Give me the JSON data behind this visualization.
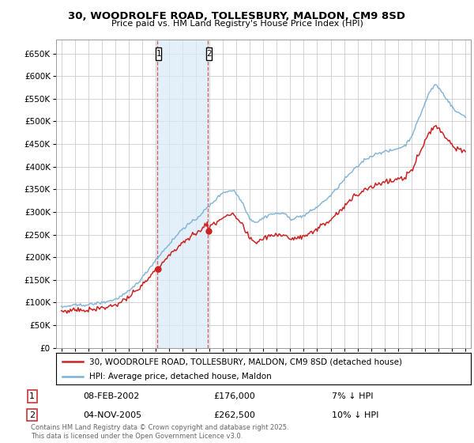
{
  "title": "30, WOODROLFE ROAD, TOLLESBURY, MALDON, CM9 8SD",
  "subtitle": "Price paid vs. HM Land Registry's House Price Index (HPI)",
  "legend_line1": "30, WOODROLFE ROAD, TOLLESBURY, MALDON, CM9 8SD (detached house)",
  "legend_line2": "HPI: Average price, detached house, Maldon",
  "footnote": "Contains HM Land Registry data © Crown copyright and database right 2025.\nThis data is licensed under the Open Government Licence v3.0.",
  "transaction1_date": "08-FEB-2002",
  "transaction1_price": "£176,000",
  "transaction1_hpi": "7% ↓ HPI",
  "transaction2_date": "04-NOV-2005",
  "transaction2_price": "£262,500",
  "transaction2_hpi": "10% ↓ HPI",
  "transaction1_year": 2002.1,
  "transaction2_year": 2005.85,
  "hpi_color": "#7ab0d4",
  "price_color": "#cc2222",
  "background_color": "#ffffff",
  "grid_color": "#cccccc",
  "shading_color": "#d8eaf8",
  "ylim": [
    0,
    680000
  ],
  "yticks": [
    0,
    50000,
    100000,
    150000,
    200000,
    250000,
    300000,
    350000,
    400000,
    450000,
    500000,
    550000,
    600000,
    650000
  ],
  "xlim_start": 1994.6,
  "xlim_end": 2025.4,
  "hpi_anchors_years": [
    1995.0,
    1996.0,
    1997.0,
    1998.0,
    1999.0,
    2000.0,
    2001.0,
    2002.0,
    2003.0,
    2004.0,
    2005.0,
    2006.0,
    2007.0,
    2007.8,
    2008.5,
    2009.0,
    2009.5,
    2010.5,
    2011.5,
    2012.0,
    2013.0,
    2014.0,
    2015.0,
    2016.0,
    2016.5,
    2017.5,
    2018.5,
    2019.5,
    2020.5,
    2021.0,
    2021.5,
    2022.3,
    2022.8,
    2023.2,
    2023.8,
    2024.3,
    2025.0
  ],
  "hpi_anchors_vals": [
    88000,
    92000,
    95000,
    100000,
    108000,
    125000,
    155000,
    195000,
    230000,
    265000,
    285000,
    315000,
    345000,
    350000,
    320000,
    285000,
    278000,
    295000,
    298000,
    285000,
    290000,
    310000,
    335000,
    370000,
    385000,
    415000,
    430000,
    435000,
    445000,
    465000,
    500000,
    560000,
    580000,
    565000,
    540000,
    520000,
    510000
  ]
}
